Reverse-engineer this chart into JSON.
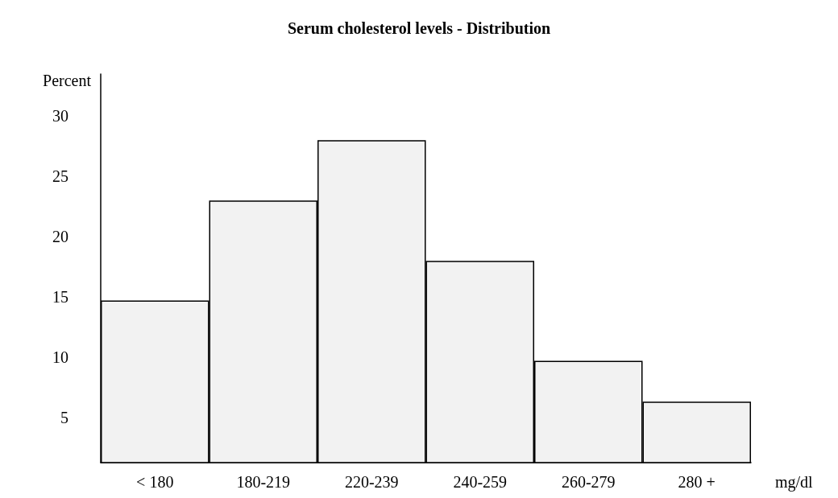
{
  "chart_data": {
    "type": "bar",
    "title": "Serum cholesterol levels - Distribution",
    "ylabel": "Percent",
    "xlabel": "mg/dl",
    "categories": [
      "< 180",
      "180-219",
      "220-239",
      "240-259",
      "260-279",
      "280 +"
    ],
    "values": [
      14.7,
      23,
      28,
      18,
      9.7,
      6.3
    ],
    "color": "#f2f2f2",
    "ylim": [
      1.25,
      33.5
    ],
    "yticks": [
      5,
      10,
      15,
      20,
      25,
      30
    ],
    "grid": false
  }
}
